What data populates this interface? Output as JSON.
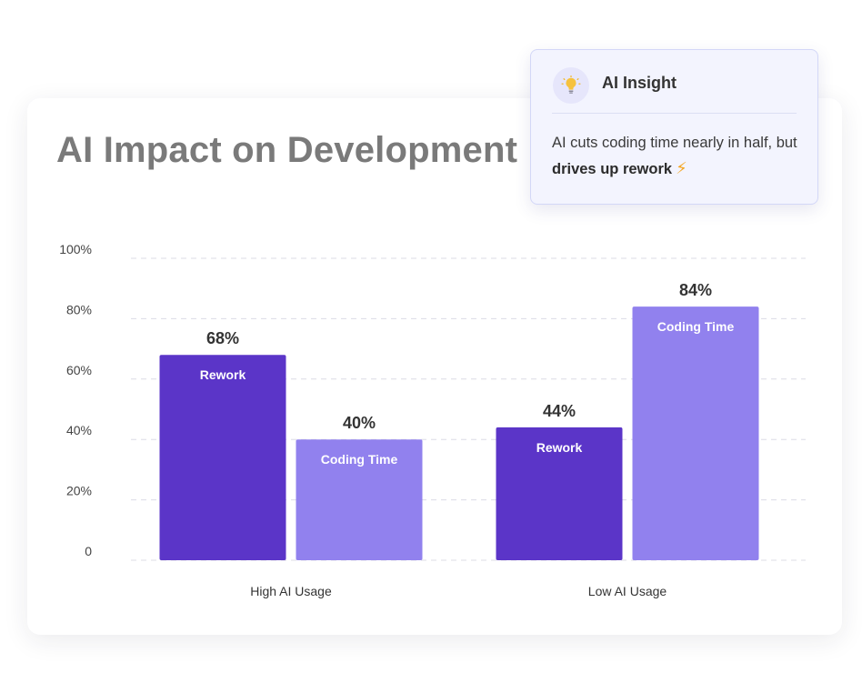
{
  "chart_data": {
    "type": "bar",
    "title": "AI Impact on Development",
    "categories": [
      "High AI Usage",
      "Low AI Usage"
    ],
    "series": [
      {
        "name": "Rework",
        "values": [
          68,
          44
        ],
        "color": "#5b35c8"
      },
      {
        "name": "Coding Time",
        "values": [
          40,
          84
        ],
        "color": "#9181ee"
      }
    ],
    "value_labels": [
      [
        "68%",
        "44%"
      ],
      [
        "40%",
        "84%"
      ]
    ],
    "yticks": [
      {
        "value": 0,
        "label": "0"
      },
      {
        "value": 20,
        "label": "20%"
      },
      {
        "value": 40,
        "label": "40%"
      },
      {
        "value": 60,
        "label": "60%"
      },
      {
        "value": 80,
        "label": "80%"
      },
      {
        "value": 100,
        "label": "100%"
      }
    ],
    "ylim": [
      0,
      100
    ],
    "grid": true,
    "legend": "none"
  },
  "insight": {
    "icon": "lightbulb-icon",
    "title": "AI Insight",
    "body_prefix": "AI cuts coding time nearly in half, but ",
    "body_bold": "drives up rework",
    "body_icon": "lightning-icon"
  }
}
